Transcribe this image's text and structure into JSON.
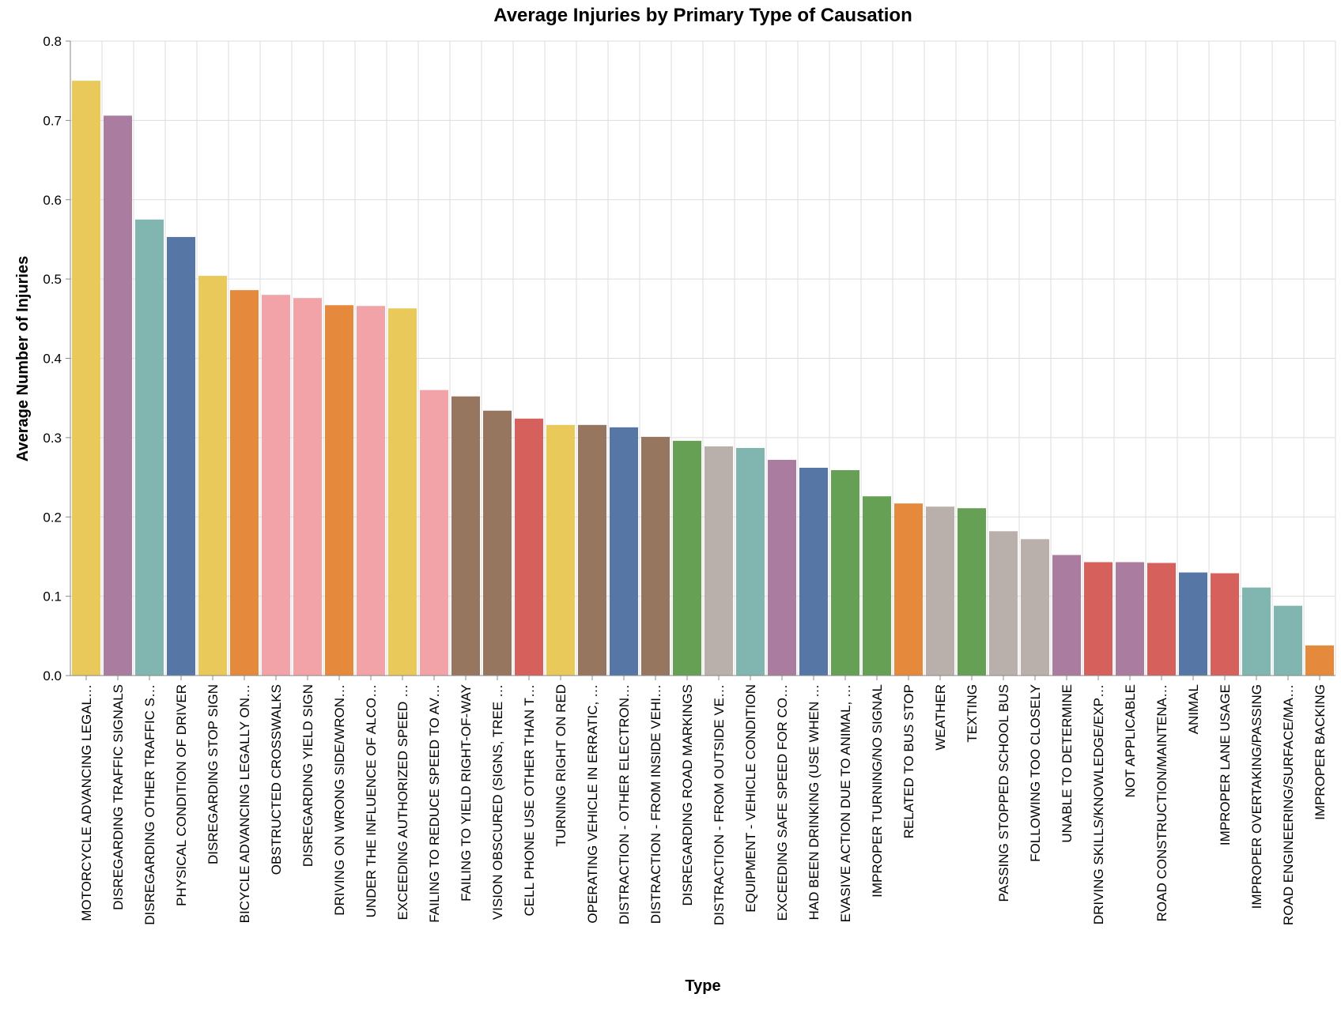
{
  "chart_data": {
    "type": "bar",
    "title": "Average Injuries by Primary Type of Causation",
    "xlabel": "Type",
    "ylabel": "Average Number of Injuries",
    "ylim": [
      0,
      0.8
    ],
    "yticks": [
      "0.0",
      "0.1",
      "0.2",
      "0.3",
      "0.4",
      "0.5",
      "0.6",
      "0.7",
      "0.8"
    ],
    "grid": true,
    "categories": [
      "MOTORCYCLE ADVANCING LEGAL…",
      "DISREGARDING TRAFFIC SIGNALS",
      "DISREGARDING OTHER TRAFFIC S…",
      "PHYSICAL CONDITION OF DRIVER",
      "DISREGARDING STOP SIGN",
      "BICYCLE ADVANCING LEGALLY ON…",
      "OBSTRUCTED CROSSWALKS",
      "DISREGARDING YIELD SIGN",
      "DRIVING ON WRONG SIDE/WRON…",
      "UNDER THE INFLUENCE OF ALCO…",
      "EXCEEDING AUTHORIZED SPEED …",
      "FAILING TO REDUCE SPEED TO AV…",
      "FAILING TO YIELD RIGHT-OF-WAY",
      "VISION OBSCURED (SIGNS, TREE …",
      "CELL PHONE USE OTHER THAN T…",
      "TURNING RIGHT ON RED",
      "OPERATING VEHICLE IN ERRATIC, …",
      "DISTRACTION - OTHER ELECTRON…",
      "DISTRACTION - FROM INSIDE VEHI…",
      "DISREGARDING ROAD MARKINGS",
      "DISTRACTION - FROM OUTSIDE VE…",
      "EQUIPMENT - VEHICLE CONDITION",
      "EXCEEDING SAFE SPEED FOR CO…",
      "HAD BEEN DRINKING (USE WHEN …",
      "EVASIVE ACTION DUE TO ANIMAL, …",
      "IMPROPER TURNING/NO SIGNAL",
      "RELATED TO BUS STOP",
      "WEATHER",
      "TEXTING",
      "PASSING STOPPED SCHOOL BUS",
      "FOLLOWING TOO CLOSELY",
      "UNABLE TO DETERMINE",
      "DRIVING SKILLS/KNOWLEDGE/EXP…",
      "NOT APPLICABLE",
      "ROAD CONSTRUCTION/MAINTENA…",
      "ANIMAL",
      "IMPROPER LANE USAGE",
      "IMPROPER OVERTAKING/PASSING",
      "ROAD ENGINEERING/SURFACE/MA…",
      "IMPROPER BACKING"
    ],
    "values": [
      0.75,
      0.706,
      0.575,
      0.553,
      0.504,
      0.486,
      0.48,
      0.476,
      0.467,
      0.466,
      0.463,
      0.36,
      0.352,
      0.334,
      0.324,
      0.316,
      0.316,
      0.313,
      0.301,
      0.296,
      0.289,
      0.287,
      0.272,
      0.262,
      0.259,
      0.226,
      0.217,
      0.213,
      0.211,
      0.182,
      0.172,
      0.152,
      0.143,
      0.143,
      0.142,
      0.13,
      0.129,
      0.111,
      0.088,
      0.038
    ],
    "colors": [
      "#e8c95a",
      "#a97ca0",
      "#81b5b0",
      "#5677a6",
      "#e8c95a",
      "#e58a3c",
      "#f2a3a7",
      "#f2a3a7",
      "#e58a3c",
      "#f2a3a7",
      "#e8c95a",
      "#f2a3a7",
      "#96765f",
      "#96765f",
      "#d6605c",
      "#e8c95a",
      "#96765f",
      "#5677a6",
      "#96765f",
      "#66a055",
      "#b9afab",
      "#81b5b0",
      "#a97ca0",
      "#5677a6",
      "#66a055",
      "#66a055",
      "#e58a3c",
      "#b9afab",
      "#66a055",
      "#b9afab",
      "#b9afab",
      "#a97ca0",
      "#d6605c",
      "#a97ca0",
      "#d6605c",
      "#5677a6",
      "#d6605c",
      "#81b5b0",
      "#81b5b0",
      "#e58a3c"
    ]
  }
}
